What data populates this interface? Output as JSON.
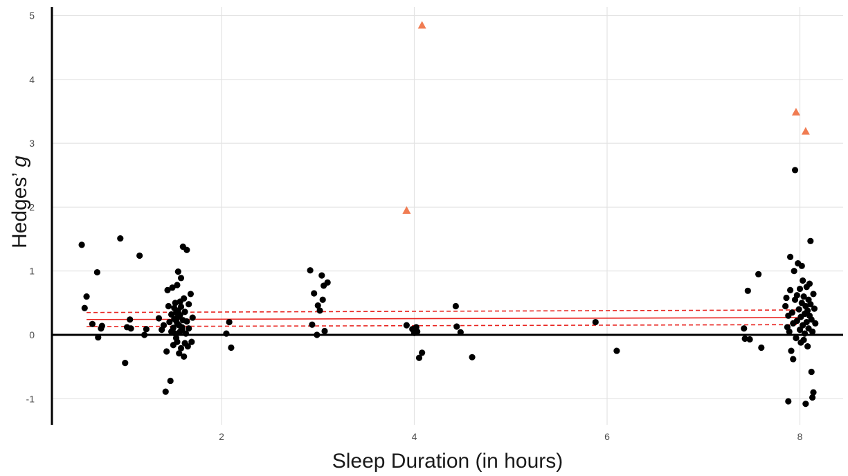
{
  "chart_data": {
    "type": "scatter",
    "title": "",
    "xlabel": "Sleep Duration (in hours)",
    "ylabel_main": "Hedges’ ",
    "ylabel_italic": "g",
    "xlim": [
      0.15,
      8.75
    ],
    "ylim": [
      -1.4,
      5.2
    ],
    "x_ticks": [
      2,
      4,
      6,
      8
    ],
    "y_ticks": [
      -1,
      0,
      1,
      2,
      3,
      4,
      5
    ],
    "grid": true,
    "colors": {
      "points": "#000000",
      "outliers": "#f07c52",
      "fit": "#e8231f"
    },
    "regression": {
      "x": [
        0.6,
        8.0
      ],
      "fit": [
        0.24,
        0.27
      ],
      "ci_upper": [
        0.35,
        0.39
      ],
      "ci_lower": [
        0.13,
        0.16
      ]
    },
    "series": [
      {
        "marker": "circle",
        "points": [
          [
            0.55,
            1.41
          ],
          [
            0.58,
            0.42
          ],
          [
            0.6,
            0.6
          ],
          [
            0.66,
            0.17
          ],
          [
            0.71,
            0.98
          ],
          [
            0.72,
            -0.04
          ],
          [
            0.75,
            0.1
          ],
          [
            0.76,
            0.14
          ],
          [
            0.95,
            1.51
          ],
          [
            1.0,
            -0.44
          ],
          [
            1.02,
            0.12
          ],
          [
            1.05,
            0.24
          ],
          [
            1.06,
            0.1
          ],
          [
            1.15,
            1.24
          ],
          [
            1.2,
            0.0
          ],
          [
            1.22,
            0.09
          ],
          [
            1.35,
            0.26
          ],
          [
            1.38,
            0.08
          ],
          [
            1.4,
            0.15
          ],
          [
            1.42,
            -0.89
          ],
          [
            1.43,
            -0.26
          ],
          [
            1.44,
            0.7
          ],
          [
            1.45,
            0.45
          ],
          [
            1.46,
            0.2
          ],
          [
            1.47,
            -0.72
          ],
          [
            1.48,
            0.32
          ],
          [
            1.48,
            0.05
          ],
          [
            1.49,
            0.74
          ],
          [
            1.5,
            -0.16
          ],
          [
            1.5,
            0.11
          ],
          [
            1.51,
            0.42
          ],
          [
            1.51,
            0.25
          ],
          [
            1.52,
            0.5
          ],
          [
            1.52,
            0.02
          ],
          [
            1.53,
            0.22
          ],
          [
            1.53,
            -0.05
          ],
          [
            1.53,
            0.35
          ],
          [
            1.54,
            -0.11
          ],
          [
            1.54,
            0.78
          ],
          [
            1.54,
            0.18
          ],
          [
            1.55,
            0.38
          ],
          [
            1.55,
            0.99
          ],
          [
            1.55,
            0.28
          ],
          [
            1.56,
            0.15
          ],
          [
            1.56,
            -0.29
          ],
          [
            1.57,
            0.52
          ],
          [
            1.57,
            0.05
          ],
          [
            1.57,
            0.31
          ],
          [
            1.58,
            0.89
          ],
          [
            1.58,
            -0.21
          ],
          [
            1.58,
            0.44
          ],
          [
            1.59,
            0.12
          ],
          [
            1.59,
            0.08
          ],
          [
            1.6,
            0.23
          ],
          [
            1.6,
            1.38
          ],
          [
            1.61,
            -0.34
          ],
          [
            1.61,
            0.57
          ],
          [
            1.62,
            -0.13
          ],
          [
            1.62,
            0.36
          ],
          [
            1.63,
            0.02
          ],
          [
            1.64,
            1.33
          ],
          [
            1.64,
            0.21
          ],
          [
            1.65,
            -0.18
          ],
          [
            1.66,
            0.48
          ],
          [
            1.66,
            0.1
          ],
          [
            1.68,
            0.64
          ],
          [
            1.69,
            -0.11
          ],
          [
            1.7,
            0.27
          ],
          [
            2.05,
            0.02
          ],
          [
            2.08,
            0.2
          ],
          [
            2.1,
            -0.2
          ],
          [
            2.92,
            1.01
          ],
          [
            2.94,
            0.16
          ],
          [
            2.96,
            0.65
          ],
          [
            2.99,
            0.0
          ],
          [
            3.0,
            0.46
          ],
          [
            3.02,
            0.38
          ],
          [
            3.04,
            0.93
          ],
          [
            3.05,
            0.55
          ],
          [
            3.06,
            0.77
          ],
          [
            3.07,
            0.06
          ],
          [
            3.1,
            0.82
          ],
          [
            3.92,
            0.15
          ],
          [
            3.98,
            0.09
          ],
          [
            4.0,
            0.03
          ],
          [
            4.02,
            0.12
          ],
          [
            4.03,
            0.05
          ],
          [
            4.05,
            -0.36
          ],
          [
            4.08,
            -0.28
          ],
          [
            4.43,
            0.45
          ],
          [
            4.44,
            0.13
          ],
          [
            4.48,
            0.04
          ],
          [
            4.6,
            -0.35
          ],
          [
            5.88,
            0.2
          ],
          [
            6.1,
            -0.25
          ],
          [
            7.42,
            0.1
          ],
          [
            7.43,
            -0.06
          ],
          [
            7.46,
            0.69
          ],
          [
            7.48,
            -0.07
          ],
          [
            7.57,
            0.95
          ],
          [
            7.6,
            -0.2
          ],
          [
            7.85,
            0.45
          ],
          [
            7.86,
            0.58
          ],
          [
            7.87,
            0.12
          ],
          [
            7.88,
            0.3
          ],
          [
            7.88,
            -1.04
          ],
          [
            7.89,
            0.05
          ],
          [
            7.9,
            1.22
          ],
          [
            7.9,
            0.7
          ],
          [
            7.91,
            -0.25
          ],
          [
            7.92,
            0.35
          ],
          [
            7.93,
            0.18
          ],
          [
            7.93,
            -0.38
          ],
          [
            7.94,
            1.0
          ],
          [
            7.95,
            0.55
          ],
          [
            7.95,
            2.58
          ],
          [
            7.96,
            -0.05
          ],
          [
            7.97,
            0.22
          ],
          [
            7.97,
            0.62
          ],
          [
            7.98,
            1.12
          ],
          [
            7.99,
            0.4
          ],
          [
            8.0,
            0.08
          ],
          [
            8.0,
            0.72
          ],
          [
            8.01,
            -0.12
          ],
          [
            8.01,
            0.28
          ],
          [
            8.02,
            0.5
          ],
          [
            8.02,
            1.08
          ],
          [
            8.03,
            0.15
          ],
          [
            8.03,
            0.85
          ],
          [
            8.04,
            -0.08
          ],
          [
            8.04,
            0.6
          ],
          [
            8.05,
            0.33
          ],
          [
            8.05,
            0.02
          ],
          [
            8.06,
            0.45
          ],
          [
            8.06,
            -1.08
          ],
          [
            8.07,
            0.75
          ],
          [
            8.07,
            0.2
          ],
          [
            8.08,
            0.38
          ],
          [
            8.08,
            -0.18
          ],
          [
            8.09,
            0.55
          ],
          [
            8.09,
            0.1
          ],
          [
            8.1,
            0.3
          ],
          [
            8.1,
            0.8
          ],
          [
            8.11,
            0.48
          ],
          [
            8.11,
            1.47
          ],
          [
            8.12,
            -0.58
          ],
          [
            8.12,
            0.24
          ],
          [
            8.13,
            -0.98
          ],
          [
            8.13,
            0.05
          ],
          [
            8.14,
            0.64
          ],
          [
            8.14,
            -0.9
          ],
          [
            8.15,
            0.41
          ],
          [
            8.16,
            0.18
          ]
        ]
      },
      {
        "marker": "triangle",
        "points": [
          [
            3.92,
            1.95
          ],
          [
            4.08,
            4.85
          ],
          [
            7.96,
            3.49
          ],
          [
            8.06,
            3.19
          ]
        ]
      }
    ]
  }
}
